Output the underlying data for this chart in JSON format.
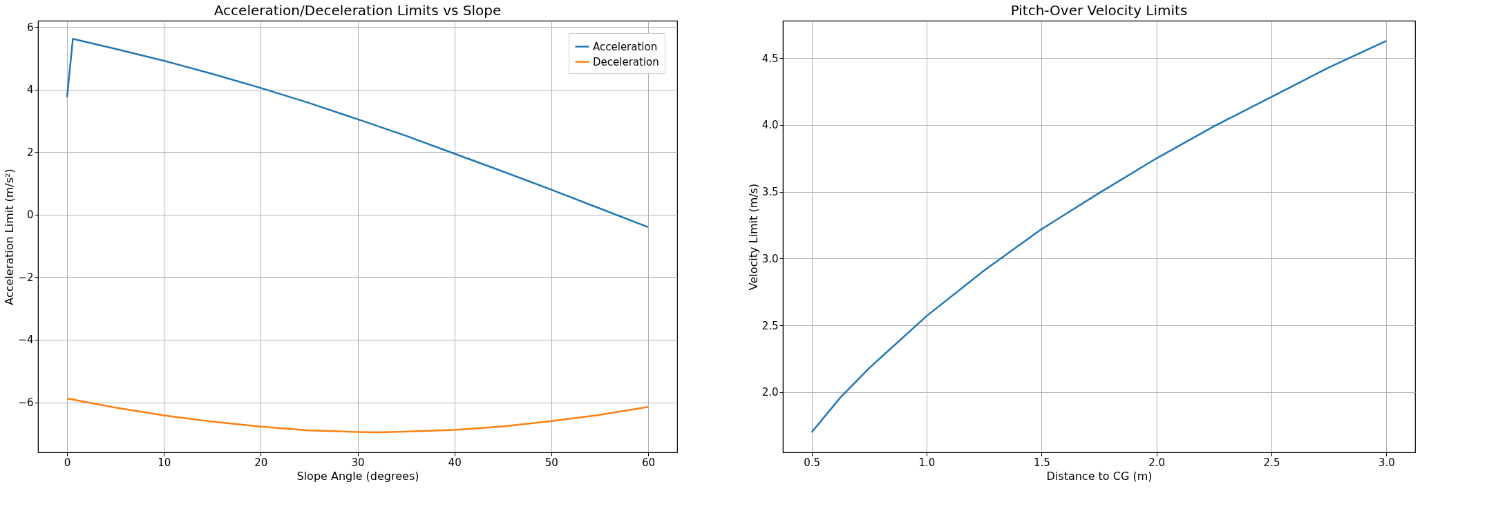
{
  "chart_data": [
    {
      "type": "line",
      "title": "Acceleration/Deceleration Limits vs Slope",
      "xlabel": "Slope Angle (degrees)",
      "ylabel": "Acceleration Limit (m/s²)",
      "xlim": [
        -3,
        63
      ],
      "ylim": [
        -7.6,
        6.2
      ],
      "xticks": [
        0,
        10,
        20,
        30,
        40,
        50,
        60
      ],
      "yticks": [
        -6,
        -4,
        -2,
        0,
        2,
        4,
        6
      ],
      "grid": true,
      "legend": "top right",
      "series": [
        {
          "name": "Acceleration",
          "color": "#1f77b4",
          "x": [
            0,
            0.6,
            5,
            10,
            15,
            20,
            25,
            30,
            35,
            40,
            45,
            50,
            55,
            60
          ],
          "values": [
            3.75,
            5.62,
            5.3,
            4.92,
            4.5,
            4.05,
            3.57,
            3.05,
            2.52,
            1.95,
            1.38,
            0.8,
            0.2,
            -0.4
          ]
        },
        {
          "name": "Deceleration",
          "color": "#ff7f0e",
          "x": [
            0,
            5,
            10,
            15,
            20,
            25,
            30,
            32,
            35,
            40,
            45,
            50,
            55,
            60
          ],
          "values": [
            -5.88,
            -6.17,
            -6.42,
            -6.62,
            -6.78,
            -6.9,
            -6.95,
            -6.96,
            -6.94,
            -6.88,
            -6.77,
            -6.6,
            -6.4,
            -6.15
          ]
        }
      ]
    },
    {
      "type": "line",
      "title": "Pitch-Over Velocity Limits",
      "xlabel": "Distance to CG (m)",
      "ylabel": "Velocity Limit (m/s)",
      "xlim": [
        0.375,
        3.125
      ],
      "ylim": [
        1.55,
        4.78
      ],
      "xticks": [
        {
          "value": 0.5,
          "label": "0.5"
        },
        {
          "value": 1.0,
          "label": "1.0"
        },
        {
          "value": 1.5,
          "label": "1.5"
        },
        {
          "value": 2.0,
          "label": "2.0"
        },
        {
          "value": 2.5,
          "label": "2.5"
        },
        {
          "value": 3.0,
          "label": "3.0"
        }
      ],
      "yticks": [
        {
          "value": 2.0,
          "label": "2.0"
        },
        {
          "value": 2.5,
          "label": "2.5"
        },
        {
          "value": 3.0,
          "label": "3.0"
        },
        {
          "value": 3.5,
          "label": "3.5"
        },
        {
          "value": 4.0,
          "label": "4.0"
        },
        {
          "value": 4.5,
          "label": "4.5"
        }
      ],
      "grid": true,
      "series": [
        {
          "color": "#1f77b4",
          "x": [
            0.5,
            0.625,
            0.75,
            1.0,
            1.25,
            1.5,
            1.75,
            2.0,
            2.25,
            2.5,
            2.75,
            3.0
          ],
          "values": [
            1.7,
            1.96,
            2.18,
            2.57,
            2.91,
            3.22,
            3.49,
            3.75,
            3.99,
            4.21,
            4.43,
            4.63
          ]
        }
      ]
    }
  ]
}
